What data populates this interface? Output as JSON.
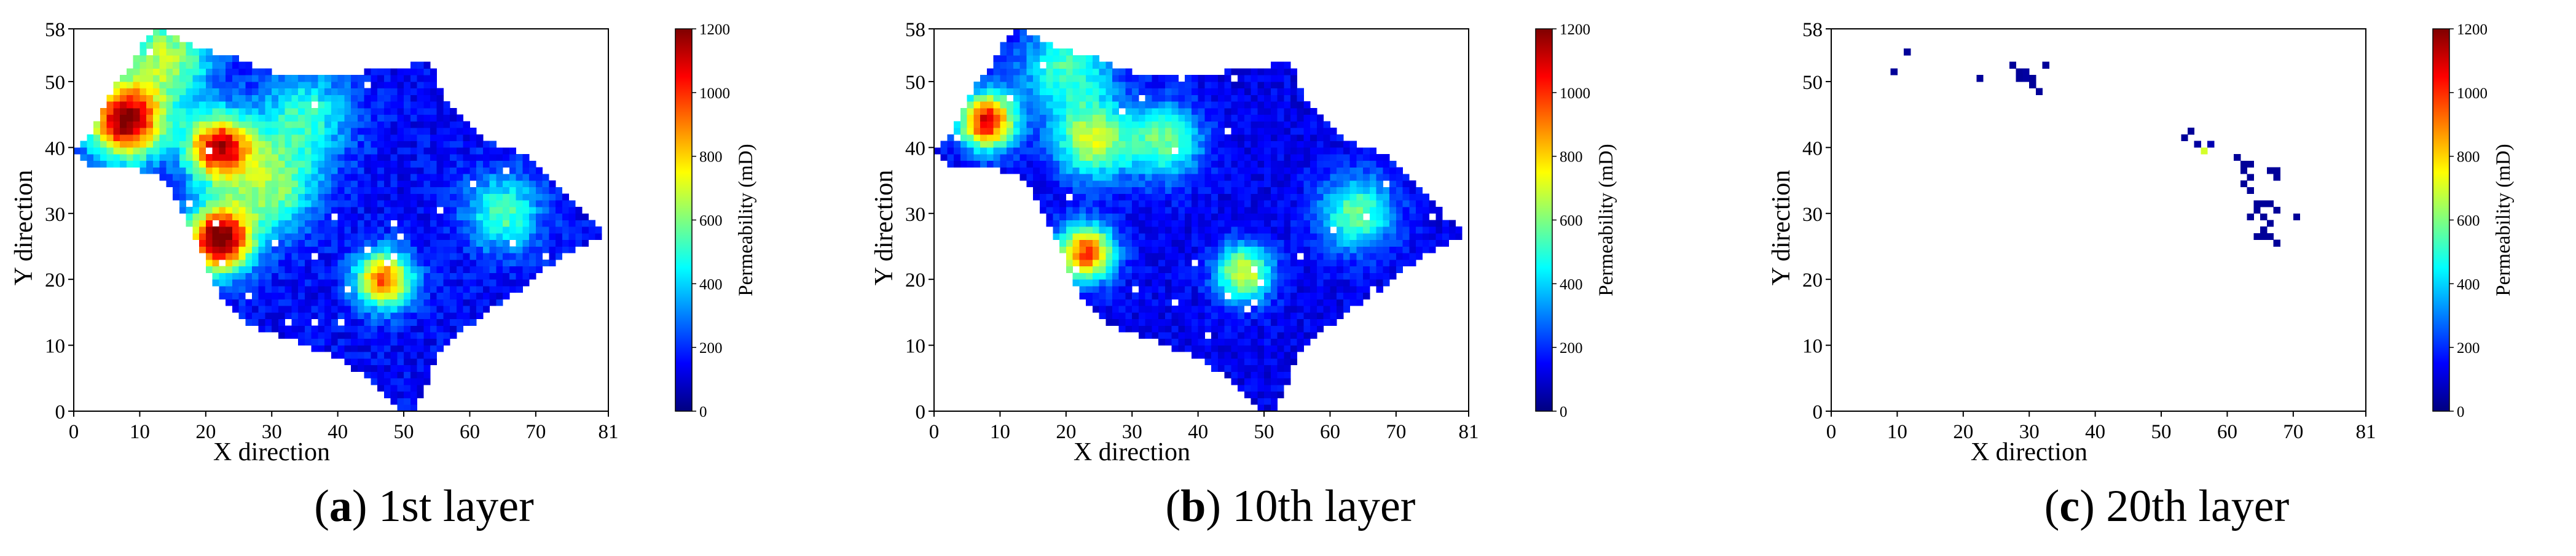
{
  "colorbar": {
    "stops": [
      "#00007f",
      "#0000ff",
      "#007fff",
      "#00ffff",
      "#7fff7f",
      "#ffff00",
      "#ff7f00",
      "#ff0000",
      "#7f0000"
    ]
  },
  "chart_data": [
    {
      "type": "heatmap",
      "grid": {
        "nx": 81,
        "ny": 58
      },
      "xlabel": "X direction",
      "ylabel": "Y direction",
      "xlim": [
        0,
        81
      ],
      "ylim": [
        0,
        58
      ],
      "xticks": [
        "0",
        "10",
        "20",
        "30",
        "40",
        "50",
        "60",
        "70",
        "81"
      ],
      "yticks": [
        "0",
        "10",
        "20",
        "30",
        "40",
        "50",
        "58"
      ],
      "colorbar_label": "Permeability (mD)",
      "colorbar_range": [
        0,
        1200
      ],
      "colorbar_ticks": [
        "0",
        "200",
        "400",
        "600",
        "800",
        "1000",
        "1200"
      ],
      "background_value": 150,
      "caption": {
        "open": "(",
        "letter": "a",
        "rest": ") 1st layer"
      },
      "hotspots": [
        {
          "x": 8,
          "y": 44,
          "value": 1050,
          "sigma": 4
        },
        {
          "x": 22,
          "y": 40,
          "value": 950,
          "sigma": 3.5
        },
        {
          "x": 22,
          "y": 26,
          "value": 1100,
          "sigma": 3.5
        },
        {
          "x": 47,
          "y": 20,
          "value": 800,
          "sigma": 3
        },
        {
          "x": 14,
          "y": 54,
          "value": 500,
          "sigma": 5
        },
        {
          "x": 30,
          "y": 34,
          "value": 450,
          "sigma": 5
        },
        {
          "x": 65,
          "y": 30,
          "value": 400,
          "sigma": 4
        },
        {
          "x": 35,
          "y": 45,
          "value": 350,
          "sigma": 5
        }
      ]
    },
    {
      "type": "heatmap",
      "grid": {
        "nx": 81,
        "ny": 58
      },
      "xlabel": "X direction",
      "ylabel": "Y direction",
      "xlim": [
        0,
        81
      ],
      "ylim": [
        0,
        58
      ],
      "xticks": [
        "0",
        "10",
        "20",
        "30",
        "40",
        "50",
        "60",
        "70",
        "81"
      ],
      "yticks": [
        "0",
        "10",
        "20",
        "30",
        "40",
        "50",
        "58"
      ],
      "colorbar_label": "Permeability (mD)",
      "colorbar_range": [
        0,
        1200
      ],
      "colorbar_ticks": [
        "0",
        "200",
        "400",
        "600",
        "800",
        "1000",
        "1200"
      ],
      "background_value": 130,
      "caption": {
        "open": "(",
        "letter": "b",
        "rest": ") 10th layer"
      },
      "hotspots": [
        {
          "x": 8,
          "y": 44,
          "value": 950,
          "sigma": 3
        },
        {
          "x": 23,
          "y": 24,
          "value": 850,
          "sigma": 3
        },
        {
          "x": 24,
          "y": 41,
          "value": 550,
          "sigma": 4
        },
        {
          "x": 47,
          "y": 21,
          "value": 600,
          "sigma": 3
        },
        {
          "x": 35,
          "y": 41,
          "value": 450,
          "sigma": 4
        },
        {
          "x": 64,
          "y": 30,
          "value": 450,
          "sigma": 4
        },
        {
          "x": 20,
          "y": 52,
          "value": 400,
          "sigma": 5
        }
      ]
    },
    {
      "type": "heatmap",
      "grid": {
        "nx": 81,
        "ny": 58
      },
      "xlabel": "X direction",
      "ylabel": "Y direction",
      "xlim": [
        0,
        81
      ],
      "ylim": [
        0,
        58
      ],
      "xticks": [
        "0",
        "10",
        "20",
        "30",
        "40",
        "50",
        "60",
        "70",
        "81"
      ],
      "yticks": [
        "0",
        "10",
        "20",
        "30",
        "40",
        "50",
        "58"
      ],
      "colorbar_label": "Permeability (mD)",
      "colorbar_range": [
        0,
        1200
      ],
      "colorbar_ticks": [
        "0",
        "200",
        "400",
        "600",
        "800",
        "1000",
        "1200"
      ],
      "caption": {
        "open": "(",
        "letter": "c",
        "rest": ") 20th layer"
      },
      "cells": [
        {
          "x": 9,
          "y": 51,
          "value": 30
        },
        {
          "x": 11,
          "y": 54,
          "value": 30
        },
        {
          "x": 22,
          "y": 50,
          "value": 30
        },
        {
          "x": 27,
          "y": 52,
          "value": 30
        },
        {
          "x": 28,
          "y": 51,
          "value": 30
        },
        {
          "x": 29,
          "y": 51,
          "value": 40
        },
        {
          "x": 29,
          "y": 50,
          "value": 40
        },
        {
          "x": 30,
          "y": 50,
          "value": 30
        },
        {
          "x": 30,
          "y": 49,
          "value": 30
        },
        {
          "x": 31,
          "y": 48,
          "value": 30
        },
        {
          "x": 28,
          "y": 50,
          "value": 30
        },
        {
          "x": 32,
          "y": 52,
          "value": 30
        },
        {
          "x": 53,
          "y": 41,
          "value": 30
        },
        {
          "x": 54,
          "y": 42,
          "value": 30
        },
        {
          "x": 55,
          "y": 40,
          "value": 40
        },
        {
          "x": 56,
          "y": 39,
          "value": 700
        },
        {
          "x": 57,
          "y": 40,
          "value": 60
        },
        {
          "x": 61,
          "y": 38,
          "value": 30
        },
        {
          "x": 62,
          "y": 37,
          "value": 30
        },
        {
          "x": 62,
          "y": 36,
          "value": 30
        },
        {
          "x": 63,
          "y": 37,
          "value": 30
        },
        {
          "x": 63,
          "y": 35,
          "value": 30
        },
        {
          "x": 62,
          "y": 34,
          "value": 30
        },
        {
          "x": 63,
          "y": 33,
          "value": 30
        },
        {
          "x": 66,
          "y": 36,
          "value": 30
        },
        {
          "x": 67,
          "y": 36,
          "value": 30
        },
        {
          "x": 67,
          "y": 35,
          "value": 30
        },
        {
          "x": 64,
          "y": 31,
          "value": 30
        },
        {
          "x": 65,
          "y": 31,
          "value": 30
        },
        {
          "x": 66,
          "y": 31,
          "value": 30
        },
        {
          "x": 67,
          "y": 30,
          "value": 30
        },
        {
          "x": 64,
          "y": 30,
          "value": 30
        },
        {
          "x": 65,
          "y": 29,
          "value": 30
        },
        {
          "x": 66,
          "y": 28,
          "value": 30
        },
        {
          "x": 65,
          "y": 27,
          "value": 30
        },
        {
          "x": 64,
          "y": 26,
          "value": 30
        },
        {
          "x": 65,
          "y": 26,
          "value": 30
        },
        {
          "x": 66,
          "y": 26,
          "value": 30
        },
        {
          "x": 67,
          "y": 25,
          "value": 30
        },
        {
          "x": 63,
          "y": 29,
          "value": 30
        },
        {
          "x": 70,
          "y": 29,
          "value": 30
        }
      ]
    }
  ]
}
